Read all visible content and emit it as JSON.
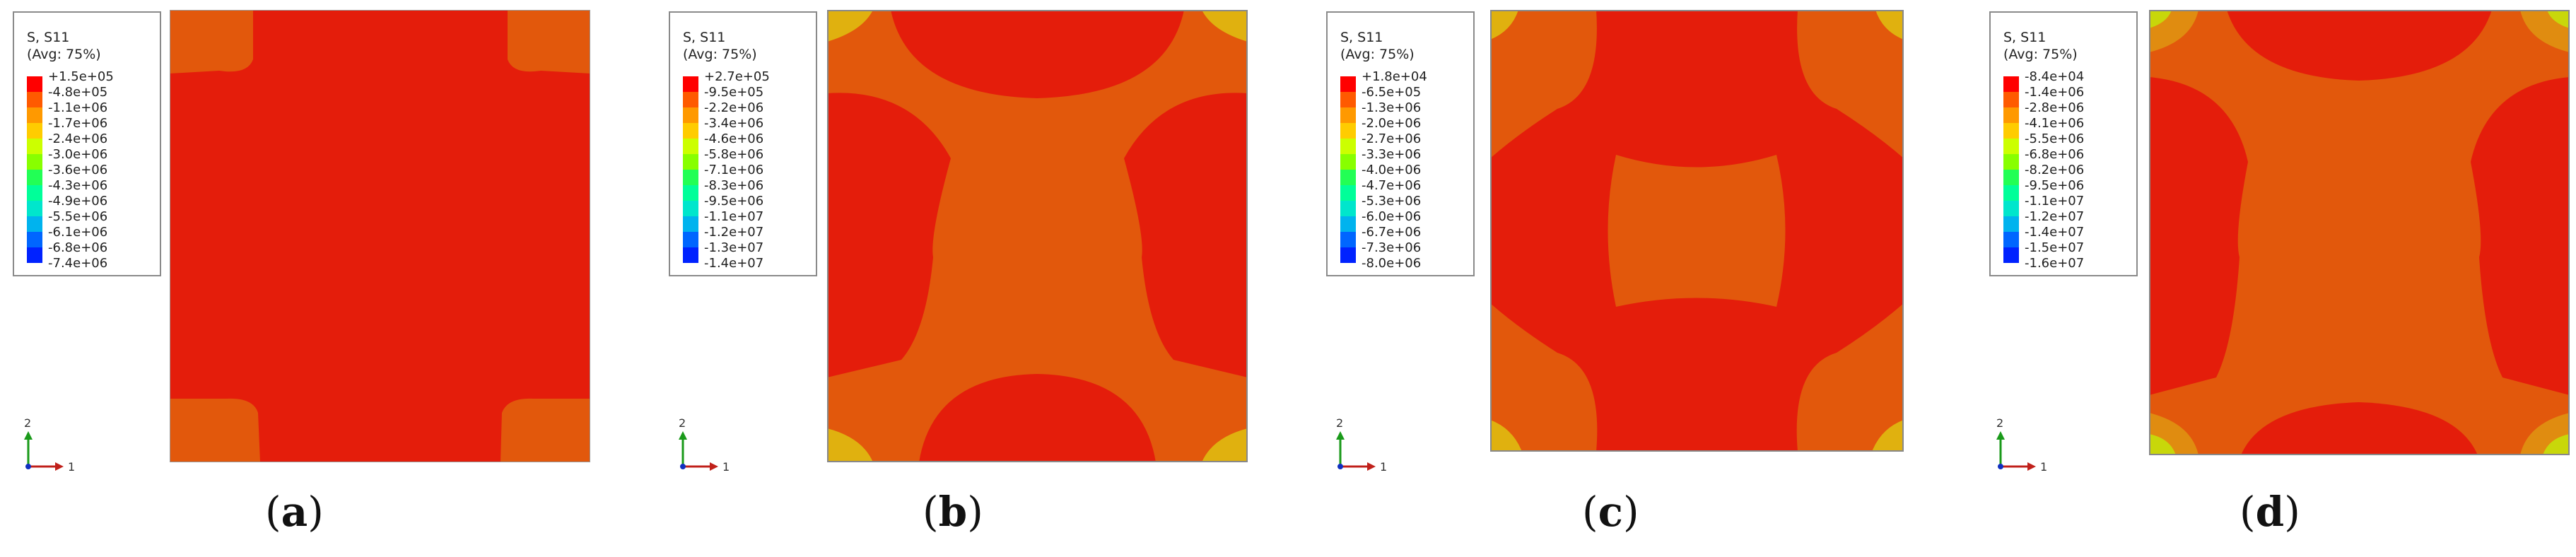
{
  "colors": {
    "red": "#e41d0b",
    "orange_red": "#e2580c",
    "orange": "#e08c10",
    "yellow_orange": "#e0b10f",
    "lime": "#c8d70a",
    "scale": [
      "#ff0000",
      "#ff5a00",
      "#ff9900",
      "#ffcc00",
      "#ccff00",
      "#88ff00",
      "#22ff55",
      "#00ff99",
      "#00e6cc",
      "#00b3ee",
      "#0066ff",
      "#0022ff",
      "#0000cc"
    ]
  },
  "panels": [
    {
      "id": "a",
      "caption_open": "(",
      "caption_letter": "a",
      "caption_close": ")",
      "legend_title_1": "S, S11",
      "legend_title_2": "(Avg: 75%)",
      "legend_values": [
        "+1.5e+05",
        "-4.8e+05",
        "-1.1e+06",
        "-1.7e+06",
        "-2.4e+06",
        "-3.0e+06",
        "-3.6e+06",
        "-4.3e+06",
        "-4.9e+06",
        "-5.5e+06",
        "-6.1e+06",
        "-6.8e+06",
        "-7.4e+06"
      ]
    },
    {
      "id": "b",
      "caption_open": "(",
      "caption_letter": "b",
      "caption_close": ")",
      "legend_title_1": "S, S11",
      "legend_title_2": "(Avg: 75%)",
      "legend_values": [
        "+2.7e+05",
        "-9.5e+05",
        "-2.2e+06",
        "-3.4e+06",
        "-4.6e+06",
        "-5.8e+06",
        "-7.1e+06",
        "-8.3e+06",
        "-9.5e+06",
        "-1.1e+07",
        "-1.2e+07",
        "-1.3e+07",
        "-1.4e+07"
      ]
    },
    {
      "id": "c",
      "caption_open": "(",
      "caption_letter": "c",
      "caption_close": ")",
      "legend_title_1": "S, S11",
      "legend_title_2": "(Avg: 75%)",
      "legend_values": [
        "+1.8e+04",
        "-6.5e+05",
        "-1.3e+06",
        "-2.0e+06",
        "-2.7e+06",
        "-3.3e+06",
        "-4.0e+06",
        "-4.7e+06",
        "-5.3e+06",
        "-6.0e+06",
        "-6.7e+06",
        "-7.3e+06",
        "-8.0e+06"
      ]
    },
    {
      "id": "d",
      "caption_open": "(",
      "caption_letter": "d",
      "caption_close": ")",
      "legend_title_1": "S, S11",
      "legend_title_2": "(Avg: 75%)",
      "legend_values": [
        "-8.4e+04",
        "-1.4e+06",
        "-2.8e+06",
        "-4.1e+06",
        "-5.5e+06",
        "-6.8e+06",
        "-8.2e+06",
        "-9.5e+06",
        "-1.1e+07",
        "-1.2e+07",
        "-1.4e+07",
        "-1.5e+07",
        "-1.6e+07"
      ]
    }
  ],
  "axis_triad": {
    "vertical": "2",
    "horizontal": "1"
  }
}
